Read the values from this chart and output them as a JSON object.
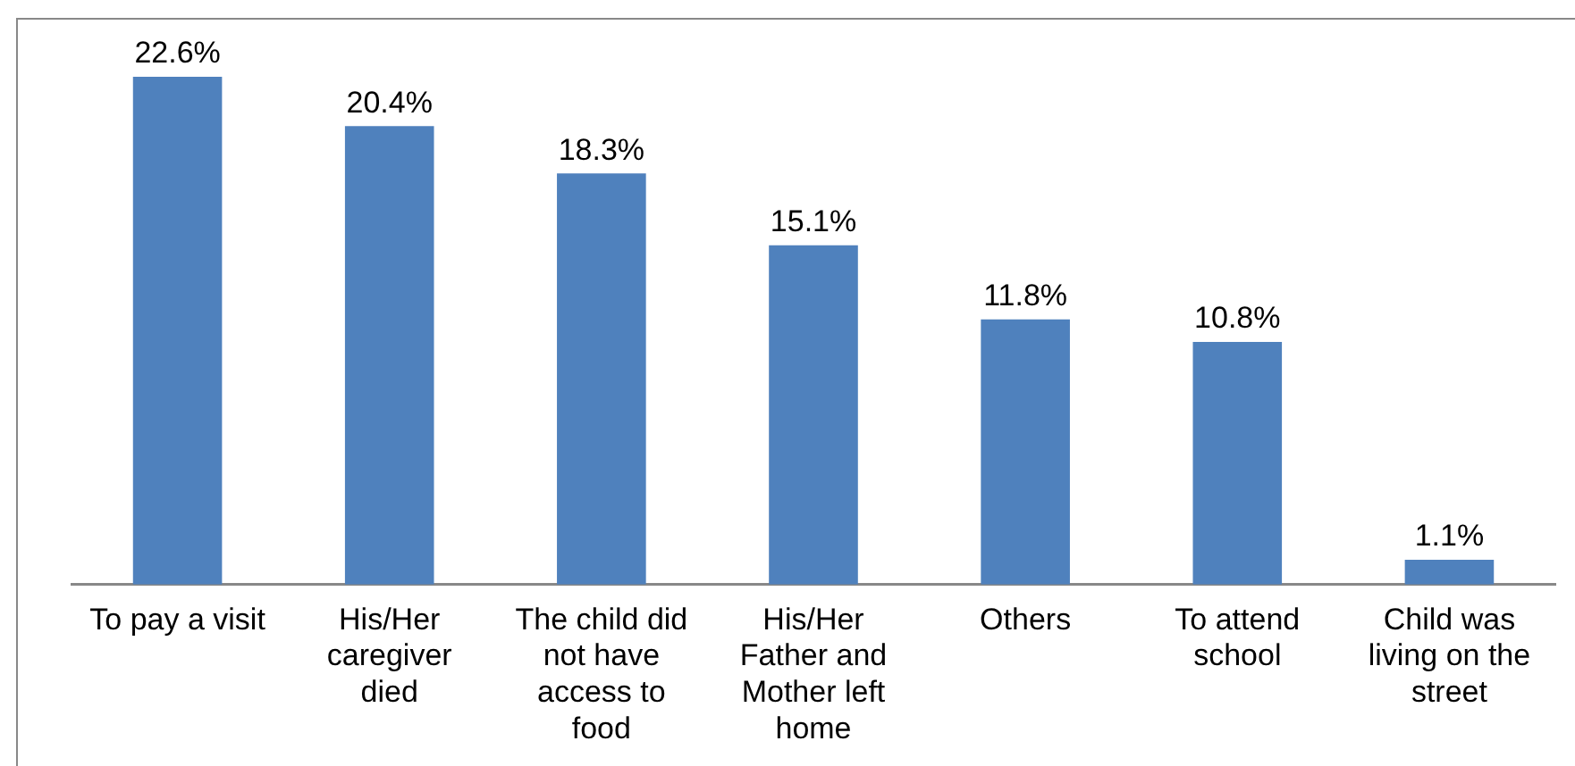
{
  "chart_data": {
    "type": "bar",
    "categories": [
      "To pay a visit",
      "His/Her caregiver died",
      "The child did not have access to food",
      "His/Her Father and Mother left home",
      "Others",
      "To attend school",
      "Child was living on the street"
    ],
    "values": [
      22.6,
      20.4,
      18.3,
      15.1,
      11.8,
      10.8,
      1.1
    ],
    "value_labels": [
      "22.6%",
      "20.4%",
      "18.3%",
      "15.1%",
      "11.8%",
      "10.8%",
      "1.1%"
    ],
    "color": "#4f81bd",
    "grid": false,
    "legend": false,
    "tick_labels": "x"
  }
}
